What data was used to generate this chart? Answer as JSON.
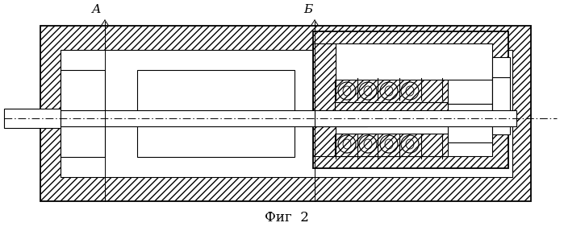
{
  "title": "Фиг  2",
  "label_A": "А",
  "label_B": "Б",
  "bg_color": "#ffffff",
  "line_color": "#000000",
  "figsize": [
    6.99,
    2.87
  ],
  "dpi": 100
}
